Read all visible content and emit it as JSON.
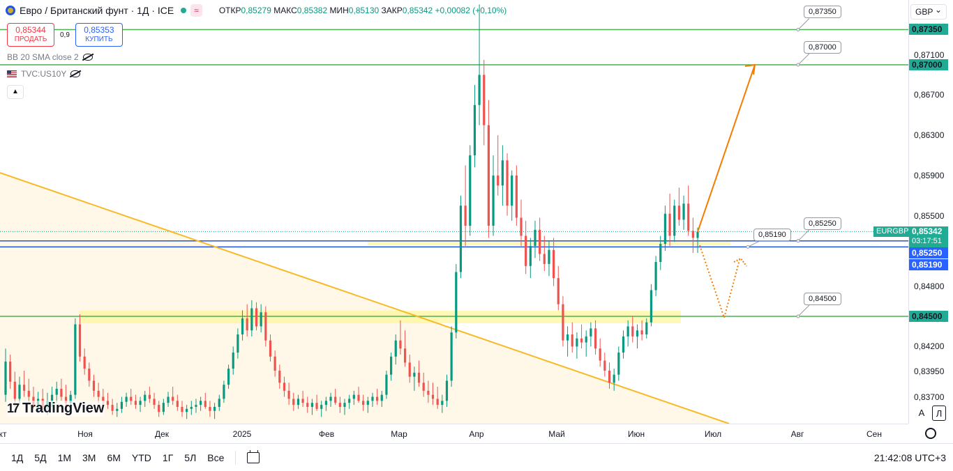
{
  "header": {
    "title": "Евро / Британский фунт · 1Д · ICE",
    "ohlc": {
      "open_label": "ОТКР",
      "open": "0,85279",
      "high_label": "МАКС",
      "high": "0,85382",
      "low_label": "МИН",
      "low": "0,85130",
      "close_label": "ЗАКР",
      "close": "0,85342",
      "change": "+0,00082 (+0,10%)"
    },
    "wave": "≈"
  },
  "trade": {
    "sell_price": "0,85344",
    "sell_label": "ПРОДАТЬ",
    "spread": "0,9",
    "buy_price": "0,85353",
    "buy_label": "КУПИТЬ"
  },
  "indicators": [
    {
      "label": "BB 20 SMA close 2"
    },
    {
      "label": "TVC:US10Y"
    }
  ],
  "logo": "TradingView",
  "currency": "GBP",
  "price_axis": {
    "ticks": [
      "0,87100",
      "0,86700",
      "0,86300",
      "0,85900",
      "0,85500",
      "0,84800",
      "0,84200",
      "0,83950",
      "0,83700"
    ],
    "tick_values": [
      0.871,
      0.867,
      0.863,
      0.859,
      0.855,
      0.848,
      0.842,
      0.8395,
      0.837
    ],
    "level_labels": [
      "0,87350",
      "0,87000",
      "0,84500"
    ],
    "level_values": [
      0.8735,
      0.87,
      0.845
    ],
    "blue_labels": [
      "0,85250",
      "0,85190"
    ],
    "blue_values": [
      0.8525,
      0.8519
    ],
    "symbol": "EURGBP",
    "last_price": "0,85342",
    "countdown": "03:17:51"
  },
  "callouts": [
    {
      "text": "0,87350",
      "value": 0.8735
    },
    {
      "text": "0,87000",
      "value": 0.87
    },
    {
      "text": "0,85190",
      "value": 0.8519
    },
    {
      "text": "0,85250",
      "value": 0.8525
    },
    {
      "text": "0,84500",
      "value": 0.845
    }
  ],
  "time_axis": {
    "labels": [
      "кт",
      "Ноя",
      "Дек",
      "2025",
      "Фев",
      "Мар",
      "Апр",
      "Май",
      "Июн",
      "Июл",
      "Авг",
      "Сен"
    ]
  },
  "axis_buttons": {
    "auto": "A",
    "log": "Л"
  },
  "bottom_bar": {
    "periods": [
      "1Д",
      "5Д",
      "1М",
      "3М",
      "6М",
      "YTD",
      "1Г",
      "5Л",
      "Все"
    ],
    "clock": "21:42:08 UTC+3"
  },
  "colors": {
    "up": "#089981",
    "down": "#ef5350",
    "level": "#4caf50",
    "blue": "#1e53e5",
    "trend": "#f7b924",
    "arrow": "#f57c00",
    "zone": "#fff59d"
  },
  "chart_data": {
    "type": "candlestick",
    "symbol": "EURGBP",
    "interval": "1D",
    "y_unit": "GBP",
    "ylim": [
      0.8355,
      0.8755
    ],
    "horizontal_levels": [
      0.8735,
      0.87,
      0.8525,
      0.8519,
      0.845
    ],
    "last_close": 0.85342,
    "candles": [
      [
        0.8372,
        0.8418,
        0.8365,
        0.8405
      ],
      [
        0.8405,
        0.8412,
        0.8378,
        0.8385
      ],
      [
        0.8385,
        0.8395,
        0.836,
        0.8368
      ],
      [
        0.8368,
        0.839,
        0.8362,
        0.8382
      ],
      [
        0.8382,
        0.8396,
        0.837,
        0.8376
      ],
      [
        0.8376,
        0.8388,
        0.8362,
        0.837
      ],
      [
        0.837,
        0.838,
        0.8358,
        0.8362
      ],
      [
        0.8362,
        0.8375,
        0.8355,
        0.8368
      ],
      [
        0.8368,
        0.8378,
        0.8356,
        0.836
      ],
      [
        0.836,
        0.8374,
        0.8352,
        0.8366
      ],
      [
        0.8366,
        0.838,
        0.836,
        0.8372
      ],
      [
        0.8372,
        0.8385,
        0.8364,
        0.8378
      ],
      [
        0.8378,
        0.8388,
        0.8366,
        0.837
      ],
      [
        0.837,
        0.8382,
        0.8362,
        0.8364
      ],
      [
        0.8364,
        0.8376,
        0.8356,
        0.8372
      ],
      [
        0.8372,
        0.8448,
        0.8368,
        0.8442
      ],
      [
        0.8442,
        0.8452,
        0.8405,
        0.841
      ],
      [
        0.841,
        0.8418,
        0.8392,
        0.8398
      ],
      [
        0.8398,
        0.8404,
        0.838,
        0.8386
      ],
      [
        0.8386,
        0.8392,
        0.837,
        0.8376
      ],
      [
        0.8376,
        0.8384,
        0.8364,
        0.837
      ],
      [
        0.837,
        0.8378,
        0.836,
        0.8366
      ],
      [
        0.8366,
        0.8374,
        0.8358,
        0.8362
      ],
      [
        0.8362,
        0.8368,
        0.8352,
        0.8356
      ],
      [
        0.8356,
        0.8364,
        0.835,
        0.8358
      ],
      [
        0.8358,
        0.837,
        0.8354,
        0.8365
      ],
      [
        0.8365,
        0.8374,
        0.836,
        0.837
      ],
      [
        0.837,
        0.8378,
        0.8362,
        0.8366
      ],
      [
        0.8366,
        0.8372,
        0.8358,
        0.8362
      ],
      [
        0.8362,
        0.837,
        0.8355,
        0.8366
      ],
      [
        0.8366,
        0.8376,
        0.836,
        0.8372
      ],
      [
        0.8372,
        0.838,
        0.8364,
        0.8368
      ],
      [
        0.8368,
        0.8374,
        0.8358,
        0.8362
      ],
      [
        0.8362,
        0.8366,
        0.835,
        0.8355
      ],
      [
        0.8355,
        0.8368,
        0.8352,
        0.8364
      ],
      [
        0.8364,
        0.8375,
        0.836,
        0.837
      ],
      [
        0.837,
        0.838,
        0.8362,
        0.8366
      ],
      [
        0.8366,
        0.8372,
        0.8356,
        0.836
      ],
      [
        0.836,
        0.8366,
        0.835,
        0.8355
      ],
      [
        0.8355,
        0.8362,
        0.8348,
        0.8358
      ],
      [
        0.8358,
        0.8366,
        0.8352,
        0.836
      ],
      [
        0.836,
        0.8368,
        0.8354,
        0.8362
      ],
      [
        0.8362,
        0.837,
        0.8356,
        0.8366
      ],
      [
        0.8366,
        0.8374,
        0.8358,
        0.836
      ],
      [
        0.836,
        0.8366,
        0.835,
        0.8356
      ],
      [
        0.8356,
        0.8364,
        0.8348,
        0.836
      ],
      [
        0.836,
        0.8372,
        0.8356,
        0.8368
      ],
      [
        0.8368,
        0.8386,
        0.8364,
        0.8382
      ],
      [
        0.8382,
        0.8402,
        0.8378,
        0.8398
      ],
      [
        0.8398,
        0.842,
        0.8392,
        0.8414
      ],
      [
        0.8414,
        0.8438,
        0.8408,
        0.8432
      ],
      [
        0.8432,
        0.8456,
        0.8426,
        0.8448
      ],
      [
        0.8448,
        0.8462,
        0.843,
        0.8436
      ],
      [
        0.8436,
        0.8466,
        0.843,
        0.8458
      ],
      [
        0.8458,
        0.8464,
        0.8436,
        0.844
      ],
      [
        0.844,
        0.8462,
        0.8434,
        0.8454
      ],
      [
        0.8454,
        0.846,
        0.842,
        0.8426
      ],
      [
        0.8426,
        0.8432,
        0.8405,
        0.841
      ],
      [
        0.841,
        0.8416,
        0.839,
        0.8396
      ],
      [
        0.8396,
        0.8402,
        0.8378,
        0.8384
      ],
      [
        0.8384,
        0.839,
        0.837,
        0.8376
      ],
      [
        0.8376,
        0.8384,
        0.8362,
        0.8368
      ],
      [
        0.8368,
        0.8374,
        0.8356,
        0.8362
      ],
      [
        0.8362,
        0.8372,
        0.8358,
        0.8368
      ],
      [
        0.8368,
        0.8376,
        0.836,
        0.8364
      ],
      [
        0.8364,
        0.837,
        0.8354,
        0.836
      ],
      [
        0.836,
        0.8368,
        0.8352,
        0.8364
      ],
      [
        0.8364,
        0.8372,
        0.8356,
        0.8358
      ],
      [
        0.8358,
        0.8366,
        0.835,
        0.8362
      ],
      [
        0.8362,
        0.837,
        0.8356,
        0.8366
      ],
      [
        0.8366,
        0.8374,
        0.836,
        0.837
      ],
      [
        0.837,
        0.8378,
        0.8362,
        0.8364
      ],
      [
        0.8364,
        0.837,
        0.8354,
        0.836
      ],
      [
        0.836,
        0.8368,
        0.8352,
        0.8364
      ],
      [
        0.8364,
        0.8372,
        0.8358,
        0.8368
      ],
      [
        0.8368,
        0.8376,
        0.8362,
        0.8372
      ],
      [
        0.8372,
        0.838,
        0.8364,
        0.8366
      ],
      [
        0.8366,
        0.8372,
        0.8356,
        0.8362
      ],
      [
        0.8362,
        0.837,
        0.8354,
        0.8366
      ],
      [
        0.8366,
        0.8374,
        0.836,
        0.837
      ],
      [
        0.837,
        0.8378,
        0.8362,
        0.8366
      ],
      [
        0.8366,
        0.8376,
        0.836,
        0.8372
      ],
      [
        0.8372,
        0.8396,
        0.8368,
        0.8392
      ],
      [
        0.8392,
        0.8414,
        0.8386,
        0.841
      ],
      [
        0.841,
        0.8432,
        0.8402,
        0.8426
      ],
      [
        0.8426,
        0.8446,
        0.8412,
        0.8418
      ],
      [
        0.8418,
        0.8436,
        0.84,
        0.8404
      ],
      [
        0.8404,
        0.8412,
        0.8384,
        0.839
      ],
      [
        0.839,
        0.84,
        0.8376,
        0.8394
      ],
      [
        0.8394,
        0.8406,
        0.838,
        0.8384
      ],
      [
        0.8384,
        0.8394,
        0.837,
        0.8376
      ],
      [
        0.8376,
        0.8386,
        0.8364,
        0.8372
      ],
      [
        0.8372,
        0.8384,
        0.8362,
        0.8368
      ],
      [
        0.8368,
        0.838,
        0.8358,
        0.8362
      ],
      [
        0.8362,
        0.8372,
        0.8354,
        0.8366
      ],
      [
        0.8366,
        0.8392,
        0.836,
        0.8386
      ],
      [
        0.8386,
        0.844,
        0.838,
        0.8434
      ],
      [
        0.8434,
        0.8502,
        0.8428,
        0.8494
      ],
      [
        0.8494,
        0.857,
        0.8488,
        0.856
      ],
      [
        0.856,
        0.86,
        0.852,
        0.854
      ],
      [
        0.854,
        0.862,
        0.853,
        0.861
      ],
      [
        0.861,
        0.868,
        0.8598,
        0.866
      ],
      [
        0.866,
        0.876,
        0.864,
        0.869
      ],
      [
        0.869,
        0.8705,
        0.862,
        0.864
      ],
      [
        0.864,
        0.8665,
        0.8528,
        0.854
      ],
      [
        0.854,
        0.861,
        0.853,
        0.859
      ],
      [
        0.859,
        0.863,
        0.857,
        0.858
      ],
      [
        0.858,
        0.862,
        0.856,
        0.8605
      ],
      [
        0.8605,
        0.8612,
        0.855,
        0.856
      ],
      [
        0.856,
        0.8595,
        0.8545,
        0.859
      ],
      [
        0.859,
        0.86,
        0.854,
        0.8548
      ],
      [
        0.8548,
        0.8566,
        0.852,
        0.853
      ],
      [
        0.853,
        0.8545,
        0.8492,
        0.85
      ],
      [
        0.85,
        0.8528,
        0.8488,
        0.852
      ],
      [
        0.852,
        0.8545,
        0.8508,
        0.8536
      ],
      [
        0.8536,
        0.8548,
        0.8505,
        0.8512
      ],
      [
        0.8512,
        0.853,
        0.8495,
        0.8502
      ],
      [
        0.8502,
        0.8525,
        0.849,
        0.8516
      ],
      [
        0.8516,
        0.8528,
        0.848,
        0.8488
      ],
      [
        0.8488,
        0.85,
        0.8456,
        0.8462
      ],
      [
        0.8462,
        0.847,
        0.842,
        0.8426
      ],
      [
        0.8426,
        0.844,
        0.841,
        0.8432
      ],
      [
        0.8432,
        0.8444,
        0.8414,
        0.842
      ],
      [
        0.842,
        0.8434,
        0.8408,
        0.8428
      ],
      [
        0.8428,
        0.8442,
        0.8418,
        0.8424
      ],
      [
        0.8424,
        0.8436,
        0.841,
        0.843
      ],
      [
        0.843,
        0.8444,
        0.842,
        0.8438
      ],
      [
        0.8438,
        0.8446,
        0.8412,
        0.8418
      ],
      [
        0.8418,
        0.8428,
        0.84,
        0.8406
      ],
      [
        0.8406,
        0.8414,
        0.839,
        0.8396
      ],
      [
        0.8396,
        0.8404,
        0.8378,
        0.8384
      ],
      [
        0.8384,
        0.8398,
        0.8376,
        0.8392
      ],
      [
        0.8392,
        0.842,
        0.8386,
        0.8414
      ],
      [
        0.8414,
        0.8436,
        0.8408,
        0.843
      ],
      [
        0.843,
        0.8446,
        0.842,
        0.844
      ],
      [
        0.844,
        0.845,
        0.8424,
        0.843
      ],
      [
        0.843,
        0.8442,
        0.8418,
        0.8436
      ],
      [
        0.8436,
        0.8446,
        0.8426,
        0.8432
      ],
      [
        0.8432,
        0.8448,
        0.8428,
        0.8444
      ],
      [
        0.8444,
        0.8482,
        0.844,
        0.8476
      ],
      [
        0.8476,
        0.851,
        0.847,
        0.8504
      ],
      [
        0.8504,
        0.853,
        0.8496,
        0.8522
      ],
      [
        0.8522,
        0.856,
        0.8515,
        0.8552
      ],
      [
        0.8552,
        0.8572,
        0.852,
        0.853
      ],
      [
        0.853,
        0.8566,
        0.8524,
        0.856
      ],
      [
        0.856,
        0.8578,
        0.854,
        0.8546
      ],
      [
        0.8546,
        0.857,
        0.8536,
        0.8562
      ],
      [
        0.8562,
        0.858,
        0.853,
        0.8535
      ],
      [
        0.8535,
        0.8548,
        0.8513,
        0.8528
      ],
      [
        0.85279,
        0.85382,
        0.8513,
        0.85342
      ]
    ],
    "trendline": {
      "from": [
        "start",
        0.8595
      ],
      "to": [
        "Июл",
        0.8355
      ]
    },
    "projection": {
      "type": "arrow",
      "from": 0.8534,
      "to": 0.87
    }
  }
}
